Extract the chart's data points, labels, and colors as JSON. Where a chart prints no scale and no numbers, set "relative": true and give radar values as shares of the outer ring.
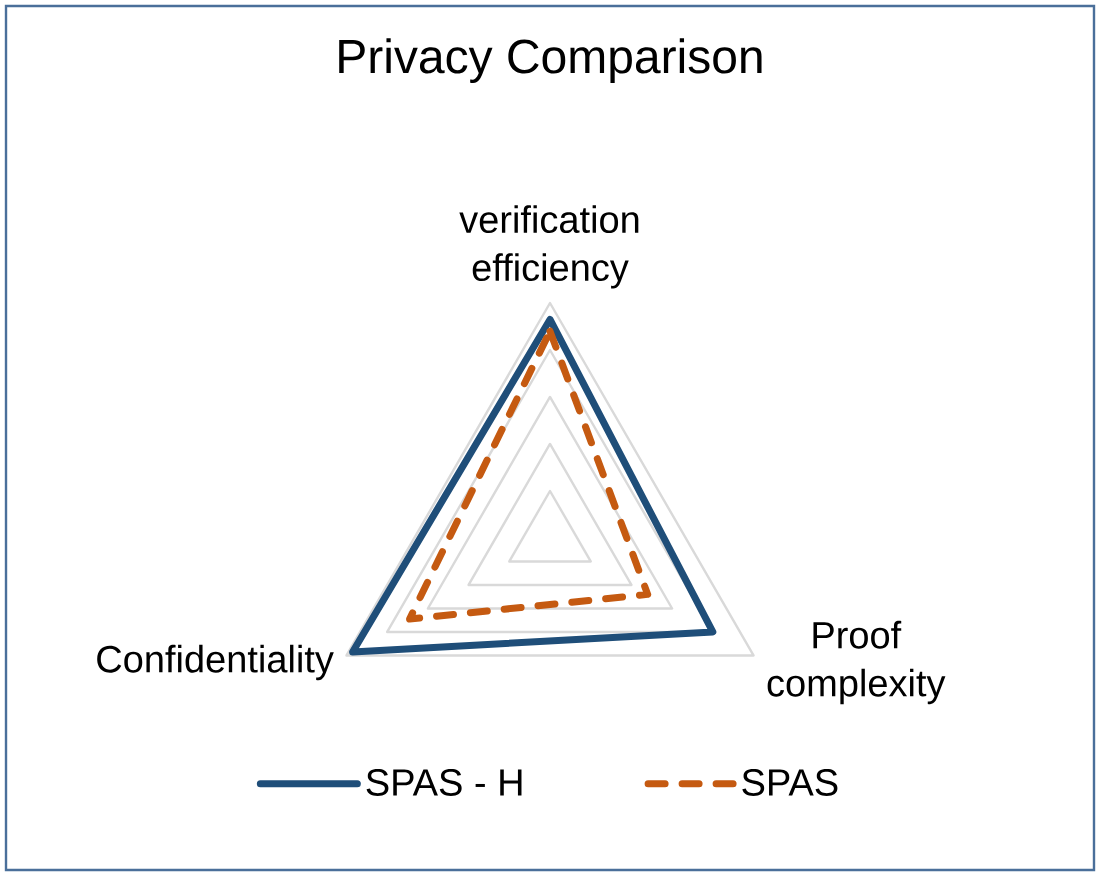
{
  "chart_data": {
    "type": "radar",
    "title": "Privacy Comparison",
    "categories": [
      "verification efficiency",
      "Proof complexity",
      "Confidentiality"
    ],
    "relative": true,
    "grid": true,
    "legend": "bottom",
    "series": [
      {
        "name": "SPAS - H",
        "color": "#1f4e79",
        "line_style": "solid",
        "values": [
          0.93,
          0.8,
          0.97
        ]
      },
      {
        "name": "SPAS",
        "color": "#c55a11",
        "line_style": "dashed",
        "values": [
          0.88,
          0.48,
          0.69
        ]
      }
    ]
  }
}
